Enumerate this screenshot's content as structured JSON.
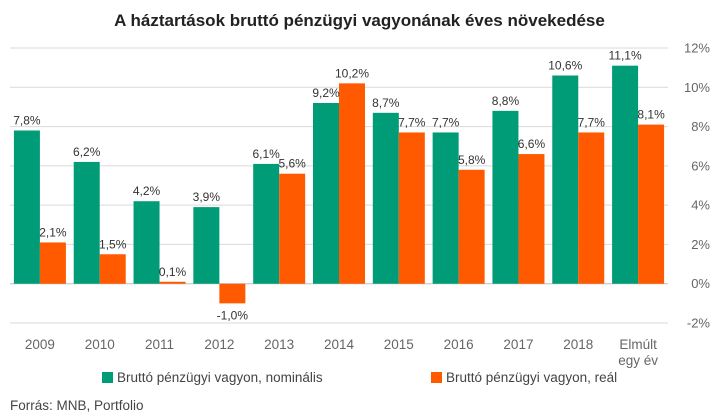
{
  "chart_data": {
    "type": "bar",
    "title": "A háztartások bruttó pénzügyi vagyonának éves növekedése",
    "categories": [
      "2009",
      "2010",
      "2011",
      "2012",
      "2013",
      "2014",
      "2015",
      "2016",
      "2017",
      "2018",
      "Elmúlt egy év"
    ],
    "category_lines": [
      [
        "2009"
      ],
      [
        "2010"
      ],
      [
        "2011"
      ],
      [
        "2012"
      ],
      [
        "2013"
      ],
      [
        "2014"
      ],
      [
        "2015"
      ],
      [
        "2016"
      ],
      [
        "2017"
      ],
      [
        "2018"
      ],
      [
        "Elmúlt",
        "egy év"
      ]
    ],
    "series": [
      {
        "name": "Bruttó pénzügyi vagyon, nominális",
        "color": "#009b77",
        "values": [
          7.8,
          6.2,
          4.2,
          3.9,
          6.1,
          9.2,
          8.7,
          7.7,
          8.8,
          10.6,
          11.1
        ],
        "labels": [
          "7,8%",
          "6,2%",
          "4,2%",
          "3,9%",
          "6,1%",
          "9,2%",
          "8,7%",
          "7,7%",
          "8,8%",
          "10,6%",
          "11,1%"
        ]
      },
      {
        "name": "Bruttó pénzügyi vagyon, reál",
        "color": "#ff5a00",
        "values": [
          2.1,
          1.5,
          0.1,
          -1.0,
          5.6,
          10.2,
          7.7,
          5.8,
          6.6,
          7.7,
          8.1
        ],
        "labels": [
          "2,1%",
          "1,5%",
          "0,1%",
          "-1,0%",
          "5,6%",
          "10,2%",
          "7,7%",
          "5,8%",
          "6,6%",
          "7,7%",
          "8,1%"
        ]
      }
    ],
    "ylim": [
      -2,
      12
    ],
    "yticks": [
      -2,
      0,
      2,
      4,
      6,
      8,
      10,
      12
    ],
    "ytick_labels": [
      "-2%",
      "0%",
      "2%",
      "4%",
      "6%",
      "8%",
      "10%",
      "12%"
    ],
    "y_axis_side": "right",
    "grid": true,
    "legend_position": "bottom"
  },
  "source": "Forrás: MNB, Portfolio"
}
